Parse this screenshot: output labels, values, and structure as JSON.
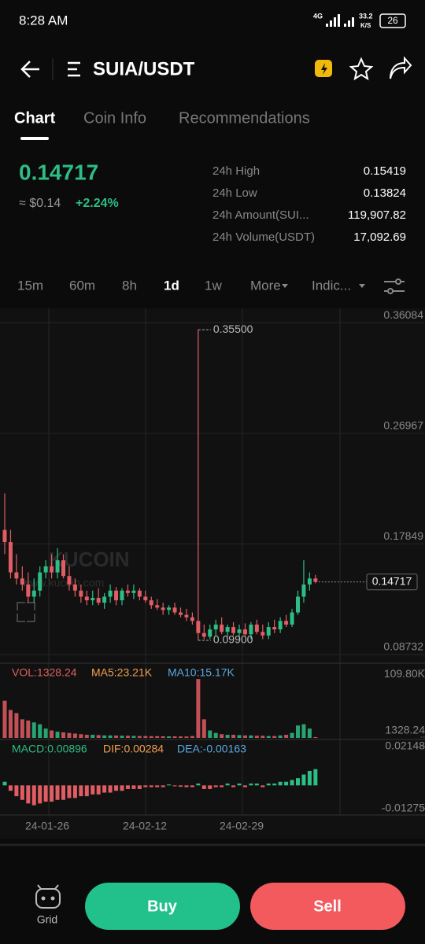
{
  "status": {
    "time": "8:28 AM",
    "net": "4G",
    "speed": "33.2",
    "speed_unit": "K/S",
    "battery": "26"
  },
  "header": {
    "pair": "SUIA/USDT"
  },
  "tabs": [
    "Chart",
    "Coin Info",
    "Recommendations"
  ],
  "price": {
    "last": "0.14717",
    "usd": "≈ $0.14",
    "change": "+2.24%"
  },
  "stats": [
    {
      "label": "24h High",
      "value": "0.15419"
    },
    {
      "label": "24h Low",
      "value": "0.13824"
    },
    {
      "label": "24h Amount(SUI...",
      "value": "119,907.82"
    },
    {
      "label": "24h Volume(USDT)",
      "value": "17,092.69"
    }
  ],
  "intervals": [
    "15m",
    "60m",
    "8h",
    "1d",
    "1w",
    "More",
    "Indic..."
  ],
  "watermark": {
    "brand": "KUCOIN",
    "url": "www.kucoin.com"
  },
  "chart_data": {
    "type": "candlestick",
    "up_color": "#2dbd85",
    "down_color": "#e05d63",
    "ylim": [
      0.0802,
      0.3726
    ],
    "yticks": [
      0.36084,
      0.26967,
      0.17849,
      0.08732
    ],
    "last": 0.14717,
    "high_mark": {
      "value": 0.355,
      "label": "0.35500"
    },
    "low_mark": {
      "value": 0.099,
      "label": "0.09900"
    },
    "dates": [
      "24-01-26",
      "24-02-12",
      "24-02-29"
    ],
    "candles": [
      [
        0.19,
        0.22,
        0.17,
        0.18
      ],
      [
        0.18,
        0.19,
        0.15,
        0.155
      ],
      [
        0.155,
        0.17,
        0.145,
        0.15
      ],
      [
        0.15,
        0.16,
        0.14,
        0.145
      ],
      [
        0.145,
        0.155,
        0.13,
        0.135
      ],
      [
        0.135,
        0.15,
        0.13,
        0.14
      ],
      [
        0.14,
        0.16,
        0.135,
        0.155
      ],
      [
        0.155,
        0.165,
        0.15,
        0.16
      ],
      [
        0.16,
        0.17,
        0.15,
        0.155
      ],
      [
        0.155,
        0.175,
        0.15,
        0.165
      ],
      [
        0.165,
        0.17,
        0.15,
        0.152
      ],
      [
        0.152,
        0.16,
        0.14,
        0.145
      ],
      [
        0.145,
        0.15,
        0.135,
        0.14
      ],
      [
        0.14,
        0.145,
        0.13,
        0.135
      ],
      [
        0.135,
        0.14,
        0.128,
        0.132
      ],
      [
        0.132,
        0.14,
        0.128,
        0.134
      ],
      [
        0.134,
        0.142,
        0.128,
        0.13
      ],
      [
        0.13,
        0.138,
        0.125,
        0.135
      ],
      [
        0.135,
        0.145,
        0.13,
        0.14
      ],
      [
        0.14,
        0.143,
        0.128,
        0.132
      ],
      [
        0.132,
        0.142,
        0.128,
        0.14
      ],
      [
        0.14,
        0.145,
        0.135,
        0.138
      ],
      [
        0.138,
        0.145,
        0.133,
        0.14
      ],
      [
        0.14,
        0.142,
        0.132,
        0.135
      ],
      [
        0.135,
        0.14,
        0.13,
        0.132
      ],
      [
        0.132,
        0.135,
        0.125,
        0.128
      ],
      [
        0.128,
        0.133,
        0.124,
        0.126
      ],
      [
        0.126,
        0.13,
        0.12,
        0.124
      ],
      [
        0.124,
        0.128,
        0.12,
        0.126
      ],
      [
        0.126,
        0.13,
        0.12,
        0.122
      ],
      [
        0.122,
        0.126,
        0.118,
        0.12
      ],
      [
        0.12,
        0.125,
        0.115,
        0.118
      ],
      [
        0.118,
        0.122,
        0.112,
        0.115
      ],
      [
        0.115,
        0.355,
        0.099,
        0.105
      ],
      [
        0.105,
        0.112,
        0.1,
        0.102
      ],
      [
        0.102,
        0.112,
        0.1,
        0.108
      ],
      [
        0.108,
        0.116,
        0.103,
        0.112
      ],
      [
        0.112,
        0.118,
        0.104,
        0.106
      ],
      [
        0.106,
        0.112,
        0.102,
        0.11
      ],
      [
        0.11,
        0.114,
        0.103,
        0.105
      ],
      [
        0.105,
        0.112,
        0.1,
        0.108
      ],
      [
        0.108,
        0.113,
        0.103,
        0.104
      ],
      [
        0.104,
        0.114,
        0.1,
        0.112
      ],
      [
        0.112,
        0.116,
        0.104,
        0.106
      ],
      [
        0.106,
        0.112,
        0.1,
        0.103
      ],
      [
        0.103,
        0.114,
        0.1,
        0.11
      ],
      [
        0.11,
        0.116,
        0.105,
        0.108
      ],
      [
        0.108,
        0.118,
        0.105,
        0.115
      ],
      [
        0.115,
        0.12,
        0.11,
        0.112
      ],
      [
        0.112,
        0.125,
        0.11,
        0.122
      ],
      [
        0.122,
        0.14,
        0.12,
        0.135
      ],
      [
        0.135,
        0.165,
        0.13,
        0.145
      ],
      [
        0.145,
        0.155,
        0.14,
        0.15
      ],
      [
        0.15,
        0.153,
        0.146,
        0.14717
      ]
    ],
    "volume": {
      "labels": {
        "vol": "VOL:1328.24",
        "ma5": "MA5:23.21K",
        "ma10": "MA10:15.17K"
      },
      "ylim": [
        0,
        118000
      ],
      "yticks": [
        {
          "value": 109800,
          "label": "109.80K"
        },
        1328.24
      ],
      "values": [
        60000,
        45000,
        40000,
        30000,
        28000,
        25000,
        22000,
        15000,
        12000,
        10000,
        9000,
        8000,
        7000,
        6000,
        5000,
        5000,
        4500,
        4000,
        4000,
        3800,
        3500,
        3500,
        3200,
        3000,
        3000,
        2800,
        2800,
        2600,
        2500,
        2500,
        2400,
        2300,
        3000,
        95000,
        30000,
        12000,
        8000,
        6000,
        5000,
        5000,
        4500,
        4000,
        4000,
        3500,
        3500,
        3000,
        3000,
        4000,
        5000,
        8000,
        20000,
        22000,
        15000,
        1328.24
      ]
    },
    "macd": {
      "labels": {
        "macd": "MACD:0.00896",
        "dif": "DIF:0.00284",
        "dea": "DEA:-0.00163"
      },
      "ylim": [
        -0.0155,
        0.0245
      ],
      "yticks": [
        0.02148,
        -0.01275
      ],
      "values": [
        0.002,
        -0.003,
        -0.006,
        -0.008,
        -0.01,
        -0.011,
        -0.01,
        -0.009,
        -0.009,
        -0.008,
        -0.008,
        -0.007,
        -0.007,
        -0.006,
        -0.006,
        -0.005,
        -0.005,
        -0.004,
        -0.004,
        -0.003,
        -0.003,
        -0.002,
        -0.002,
        -0.002,
        -0.001,
        -0.001,
        -0.001,
        -0.001,
        0.0005,
        -0.0005,
        -0.0008,
        -0.001,
        -0.001,
        0.001,
        -0.002,
        -0.002,
        -0.001,
        -0.001,
        0.001,
        -0.001,
        0.001,
        -0.001,
        0.001,
        0.001,
        -0.001,
        0.001,
        0.001,
        0.002,
        0.002,
        0.003,
        0.004,
        0.006,
        0.008,
        0.00896
      ]
    }
  },
  "bottom": {
    "grid": "Grid",
    "buy": "Buy",
    "sell": "Sell"
  }
}
